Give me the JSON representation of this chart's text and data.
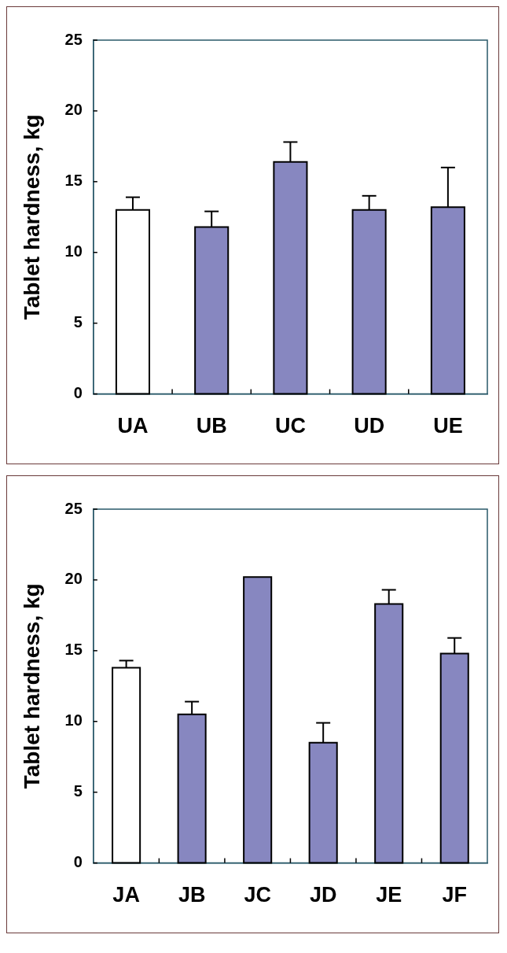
{
  "chart_data": [
    {
      "type": "bar",
      "ylabel": "Tablet hardness, kg",
      "categories": [
        "UA",
        "UB",
        "UC",
        "UD",
        "UE"
      ],
      "values": [
        13.0,
        11.8,
        16.4,
        13.0,
        13.2
      ],
      "colors": [
        "#ffffff",
        "#8787c0",
        "#8787c0",
        "#8787c0",
        "#8787c0"
      ],
      "errors": [
        [
          13.0,
          13.9
        ],
        [
          11.8,
          12.9
        ],
        [
          16.4,
          17.8
        ],
        [
          13.0,
          14.0
        ],
        [
          13.2,
          16.0
        ]
      ],
      "ylim": [
        0,
        25
      ],
      "yticks": [
        0,
        5,
        10,
        15,
        20,
        25
      ]
    },
    {
      "type": "bar",
      "ylabel": "Tablet hardness, kg",
      "categories": [
        "JA",
        "JB",
        "JC",
        "JD",
        "JE",
        "JF"
      ],
      "values": [
        13.8,
        10.5,
        20.2,
        8.5,
        18.3,
        14.8
      ],
      "colors": [
        "#ffffff",
        "#8787c0",
        "#8787c0",
        "#8787c0",
        "#8787c0",
        "#8787c0"
      ],
      "errors": [
        [
          13.8,
          14.3
        ],
        [
          10.5,
          11.4
        ],
        null,
        [
          8.5,
          9.9
        ],
        [
          18.3,
          19.3
        ],
        [
          14.8,
          15.9
        ]
      ],
      "ylim": [
        0,
        25
      ],
      "yticks": [
        0,
        5,
        10,
        15,
        20,
        25
      ]
    }
  ]
}
